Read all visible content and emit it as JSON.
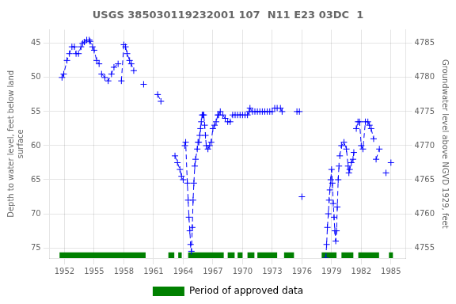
{
  "chart_data": {
    "type": "line",
    "title": "USGS 385030119232001 107  N11 E23 03DC  1",
    "ylabel": "Depth to water level, feet below land\nsurface",
    "y2label": "Groundwater level above NGVD 1929, feet",
    "xlim": [
      1950.5,
      1986.5
    ],
    "xticks": [
      1952,
      1955,
      1958,
      1961,
      1964,
      1967,
      1970,
      1973,
      1976,
      1979,
      1982,
      1985
    ],
    "ylim": [
      76.5,
      43.0
    ],
    "yticks": [
      45,
      50,
      55,
      60,
      65,
      70,
      75
    ],
    "y2lim": [
      4753.5,
      4787.0
    ],
    "y2ticks": [
      4755,
      4760,
      4765,
      4770,
      4775,
      4780,
      4785
    ],
    "grid": true,
    "legend": "bottom",
    "series": [
      {
        "type": "line",
        "color": "#0000FF",
        "marker": "+",
        "line_style": "dashed",
        "x": [
          1951.75,
          1951.92,
          1952.25,
          1952.5,
          1952.75,
          1953.0,
          1953.17,
          1953.42,
          1953.67,
          1953.83,
          1954.0,
          1954.25,
          1954.5,
          1954.58,
          1954.83,
          1955.0,
          1955.25,
          1955.5,
          null,
          1955.75,
          1956.08,
          1956.42,
          1956.75,
          1957.0,
          1957.42,
          null,
          1957.75,
          1958.0,
          1958.17,
          1958.33,
          1958.58,
          1958.75,
          1959.0,
          null,
          1960.0,
          null,
          1961.42,
          1961.75,
          null,
          1963.17,
          1963.42,
          1963.67,
          1963.83,
          1964.0,
          null,
          1964.17,
          1964.25,
          1964.42,
          1964.5,
          1964.58,
          1964.67,
          1964.75,
          1964.83,
          1964.92,
          1965.0,
          1965.08,
          1965.17,
          1965.25,
          1965.42,
          1965.5,
          1965.58,
          1965.67,
          1965.75,
          1965.83,
          1965.92,
          1966.0,
          1966.08,
          1966.17,
          1966.25,
          1966.33,
          1966.5,
          1966.67,
          1966.83,
          1967.0,
          1967.17,
          1967.33,
          1967.5,
          null,
          1967.58,
          1967.75,
          1968.0,
          1968.25,
          1968.5,
          1968.75,
          1969.0,
          1969.25,
          1969.5,
          1969.75,
          1970.0,
          1970.25,
          null,
          1970.5,
          1970.67,
          1970.75,
          1971.0,
          null,
          1971.25,
          1971.5,
          1971.75,
          1972.0,
          1972.25,
          1972.5,
          1972.75,
          1973.0,
          null,
          1973.25,
          1973.5,
          null,
          1973.83,
          1974.0,
          null,
          1975.5,
          1975.75,
          null,
          1976.0,
          null,
          1978.42,
          1978.5,
          1978.58,
          1978.67,
          1978.75,
          1978.83,
          1978.92,
          1979.0,
          1979.08,
          1979.17,
          1979.25,
          1979.33,
          1979.42,
          1979.5,
          1979.58,
          1979.67,
          1979.75,
          null,
          1979.83,
          1980.0,
          1980.25,
          1980.5,
          1980.67,
          1980.75,
          1980.83,
          1981.0,
          1981.17,
          1981.25,
          null,
          1981.5,
          1981.67,
          1981.83,
          1982.0,
          1982.17,
          1982.42,
          null,
          1982.67,
          1982.83,
          1983.0,
          1983.25,
          null,
          1983.5,
          1983.83,
          null,
          1984.5,
          null,
          1985.0
        ],
        "values": [
          50.0,
          49.5,
          47.5,
          46.5,
          45.5,
          45.5,
          46.5,
          46.5,
          45.5,
          45.0,
          44.8,
          44.5,
          44.5,
          44.7,
          45.5,
          46.0,
          47.5,
          48.0,
          null,
          49.5,
          50.0,
          50.5,
          49.5,
          48.5,
          48.0,
          null,
          50.5,
          45.2,
          45.5,
          46.5,
          47.5,
          48.0,
          49.0,
          null,
          51.0,
          null,
          52.5,
          53.5,
          null,
          61.5,
          62.5,
          63.5,
          64.5,
          65.0,
          null,
          60.0,
          59.5,
          65.5,
          68.0,
          70.5,
          72.5,
          74.5,
          75.5,
          72.0,
          68.0,
          65.5,
          63.0,
          62.0,
          60.5,
          59.5,
          59.5,
          58.5,
          57.5,
          56.5,
          55.5,
          55.5,
          55.5,
          57.0,
          58.5,
          60.0,
          60.5,
          60.0,
          59.5,
          57.5,
          57.0,
          56.5,
          55.5,
          null,
          55.5,
          55.0,
          55.5,
          56.0,
          56.5,
          56.5,
          55.5,
          55.5,
          55.5,
          55.5,
          55.5,
          55.5,
          null,
          55.5,
          55.0,
          54.5,
          55.0,
          null,
          55.0,
          55.0,
          55.0,
          55.0,
          55.0,
          55.0,
          55.0,
          55.0,
          null,
          54.5,
          54.5,
          null,
          54.5,
          55.0,
          null,
          55.0,
          55.0,
          null,
          67.5,
          null,
          76.5,
          74.5,
          72.0,
          70.0,
          68.0,
          66.5,
          65.0,
          63.5,
          65.5,
          68.5,
          70.5,
          72.5,
          74.0,
          72.5,
          69.0,
          65.0,
          63.0,
          null,
          61.5,
          60.0,
          59.5,
          60.5,
          63.0,
          64.0,
          63.5,
          62.5,
          62.0,
          61.0,
          null,
          57.5,
          56.5,
          56.5,
          60.0,
          60.5,
          56.5,
          null,
          56.5,
          57.0,
          57.5,
          59.0,
          null,
          62.0,
          60.5,
          null,
          64.0,
          null,
          62.5
        ]
      },
      {
        "name": "Period of approved data",
        "type": "band",
        "color": "#008000",
        "ranges": [
          [
            1951.5,
            1960.2
          ],
          [
            1962.5,
            1963.1
          ],
          [
            1963.5,
            1963.85
          ],
          [
            1964.5,
            1968.1
          ],
          [
            1968.5,
            1969.2
          ],
          [
            1969.5,
            1970.0
          ],
          [
            1970.5,
            1971.2
          ],
          [
            1971.5,
            1973.5
          ],
          [
            1974.2,
            1975.2
          ],
          [
            1978.0,
            1979.5
          ],
          [
            1980.0,
            1981.2
          ],
          [
            1981.7,
            1983.8
          ],
          [
            1984.8,
            1985.2
          ]
        ]
      }
    ]
  }
}
